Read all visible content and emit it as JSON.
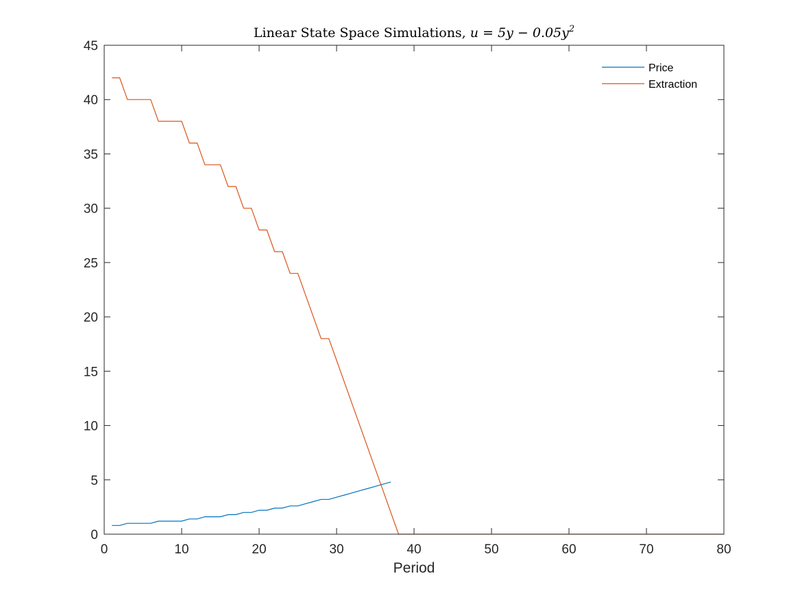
{
  "chart_data": {
    "type": "line",
    "title": {
      "prefix": "Linear State Space Simulations, ",
      "math": "u = 5y − 0.05y",
      "math_exponent": "2"
    },
    "xlabel": "Period",
    "ylabel": "",
    "xlim": [
      0,
      80
    ],
    "ylim": [
      0,
      45
    ],
    "xticks": [
      0,
      10,
      20,
      30,
      40,
      50,
      60,
      70,
      80
    ],
    "yticks": [
      0,
      5,
      10,
      15,
      20,
      25,
      30,
      35,
      40,
      45
    ],
    "grid": false,
    "legend": "top-right",
    "series": [
      {
        "name": "Price",
        "color": "#0072BD",
        "x": [
          1,
          2,
          3,
          4,
          5,
          6,
          7,
          8,
          9,
          10,
          11,
          12,
          13,
          14,
          15,
          16,
          17,
          18,
          19,
          20,
          21,
          22,
          23,
          24,
          25,
          26,
          27,
          28,
          29,
          30,
          31,
          32,
          33,
          34,
          35,
          36,
          37
        ],
        "y": [
          0.8,
          0.8,
          1.0,
          1.0,
          1.0,
          1.0,
          1.2,
          1.2,
          1.2,
          1.2,
          1.4,
          1.4,
          1.6,
          1.6,
          1.6,
          1.8,
          1.8,
          2.0,
          2.0,
          2.2,
          2.2,
          2.4,
          2.4,
          2.6,
          2.6,
          2.8,
          3.0,
          3.2,
          3.2,
          3.4,
          3.6,
          3.8,
          4.0,
          4.2,
          4.4,
          4.6,
          4.8
        ]
      },
      {
        "name": "Extraction",
        "color": "#D95319",
        "x": [
          1,
          2,
          3,
          4,
          5,
          6,
          7,
          8,
          9,
          10,
          11,
          12,
          13,
          14,
          15,
          16,
          17,
          18,
          19,
          20,
          21,
          22,
          23,
          24,
          25,
          26,
          27,
          28,
          29,
          30,
          31,
          32,
          33,
          34,
          35,
          36,
          37,
          38,
          39,
          80
        ],
        "y": [
          42,
          42,
          40,
          40,
          40,
          40,
          38,
          38,
          38,
          38,
          36,
          36,
          34,
          34,
          34,
          32,
          32,
          30,
          30,
          28,
          28,
          26,
          26,
          24,
          24,
          22,
          20,
          18,
          18,
          16,
          14,
          12,
          10,
          8,
          6,
          4,
          2,
          0,
          0,
          0
        ]
      }
    ]
  }
}
